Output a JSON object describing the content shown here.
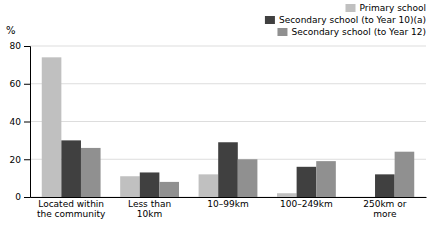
{
  "chart_data": {
    "type": "bar",
    "ylabel": "%",
    "categories": [
      "Located within\nthe community",
      "Less than\n10km",
      "10–99km",
      "100–249km",
      "250km or\nmore"
    ],
    "series": [
      {
        "name": "Primary school",
        "color": "#c0c0c0",
        "values": [
          74,
          11,
          12,
          2,
          0
        ]
      },
      {
        "name": "Secondary school (to Year 10)(a)",
        "color": "#404040",
        "values": [
          30,
          13,
          29,
          16,
          12
        ]
      },
      {
        "name": "Secondary school (to Year 12)",
        "color": "#909090",
        "values": [
          26,
          8,
          20,
          19,
          24
        ]
      }
    ],
    "ylim": [
      0,
      80
    ],
    "yticks": [
      0,
      20,
      40,
      60,
      80
    ],
    "grid": true,
    "legend": "upper right"
  }
}
